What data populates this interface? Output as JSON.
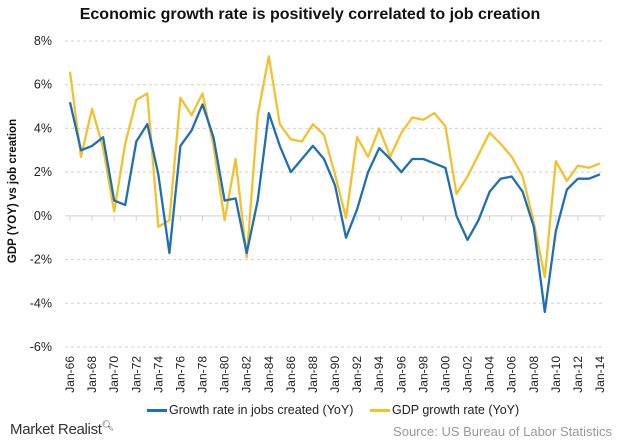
{
  "chart_data": {
    "type": "line",
    "title": "Economic growth rate is positively correlated to job creation",
    "ylabel": "GDP (YOY) vs job creation",
    "xlabel": "",
    "ylim": [
      -6,
      8
    ],
    "yticks": [
      "8%",
      "6%",
      "4%",
      "2%",
      "0%",
      "-2%",
      "-4%",
      "-6%"
    ],
    "ytick_values": [
      8,
      6,
      4,
      2,
      0,
      -2,
      -4,
      -6
    ],
    "grid": "horizontal dashed",
    "legend_position": "bottom",
    "x": [
      "Jan-66",
      "Jan-67",
      "Jan-68",
      "Jan-69",
      "Jan-70",
      "Jan-71",
      "Jan-72",
      "Jan-73",
      "Jan-74",
      "Jan-75",
      "Jan-76",
      "Jan-77",
      "Jan-78",
      "Jan-79",
      "Jan-80",
      "Jan-81",
      "Jan-82",
      "Jan-83",
      "Jan-84",
      "Jan-85",
      "Jan-86",
      "Jan-87",
      "Jan-88",
      "Jan-89",
      "Jan-90",
      "Jan-91",
      "Jan-92",
      "Jan-93",
      "Jan-94",
      "Jan-95",
      "Jan-96",
      "Jan-97",
      "Jan-98",
      "Jan-99",
      "Jan-00",
      "Jan-01",
      "Jan-02",
      "Jan-03",
      "Jan-04",
      "Jan-05",
      "Jan-06",
      "Jan-07",
      "Jan-08",
      "Jan-09",
      "Jan-10",
      "Jan-11",
      "Jan-12",
      "Jan-13",
      "Jan-14"
    ],
    "xtick_labels": [
      "Jan-66",
      "Jan-68",
      "Jan-70",
      "Jan-72",
      "Jan-74",
      "Jan-76",
      "Jan-78",
      "Jan-80",
      "Jan-82",
      "Jan-84",
      "Jan-86",
      "Jan-88",
      "Jan-90",
      "Jan-92",
      "Jan-94",
      "Jan-96",
      "Jan-98",
      "Jan-00",
      "Jan-02",
      "Jan-04",
      "Jan-06",
      "Jan-08",
      "Jan-10",
      "Jan-12",
      "Jan-14"
    ],
    "series": [
      {
        "name": "Growth rate in jobs created (YoY)",
        "color": "#1f6fb2",
        "values": [
          5.2,
          3.0,
          3.2,
          3.6,
          0.7,
          0.5,
          3.4,
          4.2,
          1.9,
          -1.7,
          3.2,
          3.9,
          5.1,
          3.6,
          0.7,
          0.8,
          -1.7,
          0.7,
          4.7,
          3.2,
          2.0,
          2.6,
          3.2,
          2.6,
          1.4,
          -1.0,
          0.3,
          2.0,
          3.1,
          2.6,
          2.0,
          2.6,
          2.6,
          2.4,
          2.2,
          0.0,
          -1.1,
          -0.2,
          1.1,
          1.7,
          1.8,
          1.1,
          -0.5,
          -4.4,
          -0.7,
          1.2,
          1.7,
          1.7,
          1.9
        ]
      },
      {
        "name": "GDP growth rate (YoY)",
        "color": "#f2c12e",
        "values": [
          6.6,
          2.7,
          4.9,
          3.1,
          0.2,
          3.3,
          5.3,
          5.6,
          -0.5,
          -0.2,
          5.4,
          4.6,
          5.6,
          3.2,
          -0.2,
          2.6,
          -1.9,
          4.6,
          7.3,
          4.2,
          3.5,
          3.4,
          4.2,
          3.7,
          1.9,
          -0.1,
          3.6,
          2.7,
          4.0,
          2.7,
          3.8,
          4.5,
          4.4,
          4.7,
          4.1,
          1.0,
          1.8,
          2.8,
          3.8,
          3.3,
          2.7,
          1.8,
          -0.3,
          -2.8,
          2.5,
          1.6,
          2.3,
          2.2,
          2.4
        ]
      }
    ]
  },
  "branding": {
    "logo": "Market Realist"
  },
  "source": "Source: US Bureau of Labor Statistics"
}
